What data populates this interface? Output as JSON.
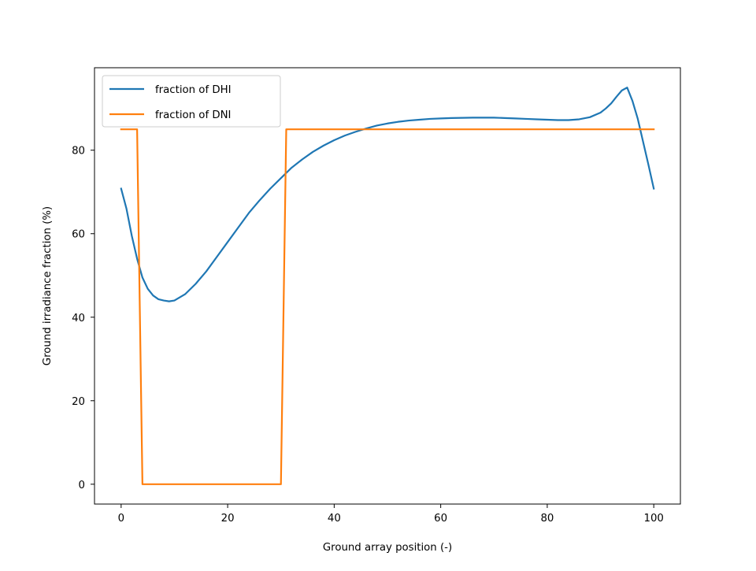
{
  "chart_data": {
    "type": "line",
    "title": "",
    "xlabel": "Ground array position (-)",
    "ylabel": "Ground irradiance fraction (%)",
    "xlim": [
      -5,
      105
    ],
    "ylim": [
      -4.75,
      99.75
    ],
    "xticks": [
      0,
      20,
      40,
      60,
      80,
      100
    ],
    "yticks": [
      0,
      20,
      40,
      60,
      80
    ],
    "grid": false,
    "legend_position": "upper-left",
    "series": [
      {
        "name": "fraction of DHI",
        "color": "#1f77b4",
        "x": [
          0,
          1,
          2,
          3,
          4,
          5,
          6,
          7,
          8,
          9,
          10,
          12,
          14,
          16,
          18,
          20,
          22,
          24,
          26,
          28,
          30,
          32,
          34,
          36,
          38,
          40,
          42,
          44,
          46,
          48,
          50,
          52,
          54,
          56,
          58,
          60,
          62,
          64,
          66,
          68,
          70,
          72,
          74,
          76,
          78,
          80,
          82,
          84,
          86,
          88,
          90,
          91,
          92,
          93,
          94,
          95,
          96,
          97,
          98,
          99,
          100
        ],
        "y": [
          70.8,
          66,
          59.5,
          54,
          49.5,
          46.8,
          45.2,
          44.3,
          44,
          43.8,
          44,
          45.5,
          48,
          51,
          54.5,
          58,
          61.5,
          65,
          68,
          70.8,
          73.3,
          75.8,
          77.8,
          79.6,
          81.1,
          82.4,
          83.5,
          84.4,
          85.2,
          85.9,
          86.4,
          86.8,
          87.1,
          87.3,
          87.5,
          87.6,
          87.7,
          87.75,
          87.8,
          87.8,
          87.8,
          87.7,
          87.6,
          87.5,
          87.4,
          87.3,
          87.2,
          87.2,
          87.4,
          87.9,
          89,
          90,
          91.2,
          92.8,
          94.3,
          95,
          91.8,
          87.5,
          82,
          76.5,
          70.8
        ]
      },
      {
        "name": "fraction of DNI",
        "color": "#ff7f0e",
        "x": [
          0,
          3,
          4,
          30,
          31,
          100
        ],
        "y": [
          85,
          85,
          0,
          0,
          85,
          85
        ]
      }
    ]
  }
}
